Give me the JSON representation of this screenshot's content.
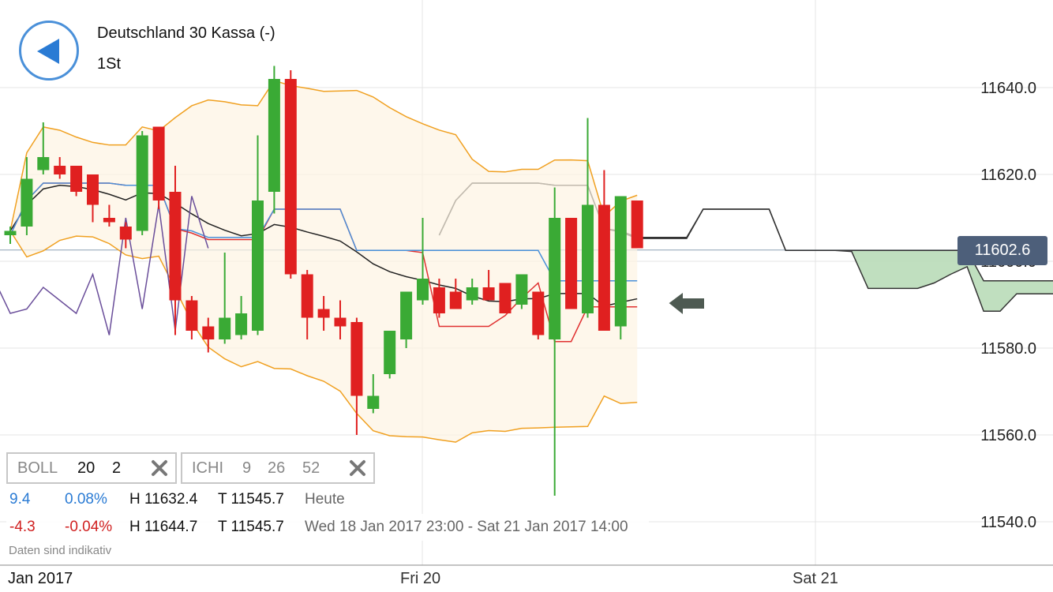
{
  "header": {
    "title": "Deutschland 30 Kassa (-)",
    "interval": "1St"
  },
  "current_price": "11602.6",
  "indicators": {
    "boll": {
      "name": "BOLL",
      "p1": "20",
      "p2": "2"
    },
    "ichi": {
      "name": "ICHI",
      "p1": "9",
      "p2": "26",
      "p3": "52"
    }
  },
  "info": {
    "today": {
      "change": "9.4",
      "pct": "0.08%",
      "high": "H 11632.4",
      "low": "T 11545.7",
      "label": "Heute"
    },
    "range": {
      "change": "-4.3",
      "pct": "-0.04%",
      "high": "H 11644.7",
      "low": "T 11545.7",
      "label": "Wed 18 Jan 2017 23:00 - Sat 21 Jan 2017 14:00"
    }
  },
  "disclaimer": "Daten sind indikativ",
  "x_labels": {
    "first": "Jan 2017",
    "fri": "Fri 20",
    "sat": "Sat 21"
  },
  "colors": {
    "up": "#3aaa35",
    "down": "#e02020",
    "boll": "#f0a020",
    "tenkan": "#e03030",
    "kijun": "#4a90d9",
    "cloud": "#b9dbb8",
    "price_tag": "#4d5f7a"
  },
  "chart_data": {
    "type": "candlestick",
    "title": "Deutschland 30 Kassa (-)",
    "interval": "1St",
    "y_ticks": [
      "11540.0",
      "11560.0",
      "11580.0",
      "11600.0",
      "11620.0",
      "11640.0"
    ],
    "ylim": [
      11528,
      11659
    ],
    "last_price": 11602.6,
    "candles": [
      {
        "o": 11606,
        "h": 11608,
        "l": 11604,
        "c": 11607
      },
      {
        "o": 11608,
        "h": 11624,
        "l": 11606,
        "c": 11619
      },
      {
        "o": 11621,
        "h": 11632,
        "l": 11620,
        "c": 11624
      },
      {
        "o": 11622,
        "h": 11624,
        "l": 11619,
        "c": 11620
      },
      {
        "o": 11622,
        "h": 11622,
        "l": 11615,
        "c": 11616
      },
      {
        "o": 11620,
        "h": 11620,
        "l": 11609,
        "c": 11613
      },
      {
        "o": 11610,
        "h": 11613,
        "l": 11608,
        "c": 11609
      },
      {
        "o": 11608,
        "h": 11609,
        "l": 11603,
        "c": 11605
      },
      {
        "o": 11607,
        "h": 11630,
        "l": 11606,
        "c": 11629
      },
      {
        "o": 11631,
        "h": 11631,
        "l": 11612,
        "c": 11614
      },
      {
        "o": 11616,
        "h": 11622,
        "l": 11583,
        "c": 11591
      },
      {
        "o": 11591,
        "h": 11592,
        "l": 11582,
        "c": 11584
      },
      {
        "o": 11585,
        "h": 11587,
        "l": 11579,
        "c": 11582
      },
      {
        "o": 11582,
        "h": 11602,
        "l": 11581,
        "c": 11587
      },
      {
        "o": 11583,
        "h": 11592,
        "l": 11582,
        "c": 11588
      },
      {
        "o": 11584,
        "h": 11629,
        "l": 11583,
        "c": 11614
      },
      {
        "o": 11616,
        "h": 11645,
        "l": 11611,
        "c": 11642
      },
      {
        "o": 11642,
        "h": 11644,
        "l": 11596,
        "c": 11597
      },
      {
        "o": 11597,
        "h": 11598,
        "l": 11582,
        "c": 11587
      },
      {
        "o": 11589,
        "h": 11592,
        "l": 11584,
        "c": 11587
      },
      {
        "o": 11587,
        "h": 11591,
        "l": 11582,
        "c": 11585
      },
      {
        "o": 11586,
        "h": 11587,
        "l": 11560,
        "c": 11569
      },
      {
        "o": 11566,
        "h": 11574,
        "l": 11565,
        "c": 11569
      },
      {
        "o": 11574,
        "h": 11584,
        "l": 11573,
        "c": 11584
      },
      {
        "o": 11582,
        "h": 11593,
        "l": 11580,
        "c": 11593
      },
      {
        "o": 11591,
        "h": 11610,
        "l": 11590,
        "c": 11596
      },
      {
        "o": 11594,
        "h": 11596,
        "l": 11587,
        "c": 11588
      },
      {
        "o": 11593,
        "h": 11596,
        "l": 11589,
        "c": 11589
      },
      {
        "o": 11591,
        "h": 11596,
        "l": 11590,
        "c": 11594
      },
      {
        "o": 11594,
        "h": 11598,
        "l": 11591,
        "c": 11591
      },
      {
        "o": 11595,
        "h": 11595,
        "l": 11588,
        "c": 11588
      },
      {
        "o": 11590,
        "h": 11597,
        "l": 11589,
        "c": 11597
      },
      {
        "o": 11593,
        "h": 11593,
        "l": 11582,
        "c": 11583
      },
      {
        "o": 11582,
        "h": 11617,
        "l": 11546,
        "c": 11610
      },
      {
        "o": 11610,
        "h": 11610,
        "l": 11589,
        "c": 11589
      },
      {
        "o": 11588,
        "h": 11633,
        "l": 11587,
        "c": 11613
      },
      {
        "o": 11613,
        "h": 11621,
        "l": 11584,
        "c": 11584
      },
      {
        "o": 11585,
        "h": 11615,
        "l": 11582,
        "c": 11615
      },
      {
        "o": 11614,
        "h": 11614,
        "l": 11603,
        "c": 11603
      }
    ]
  }
}
